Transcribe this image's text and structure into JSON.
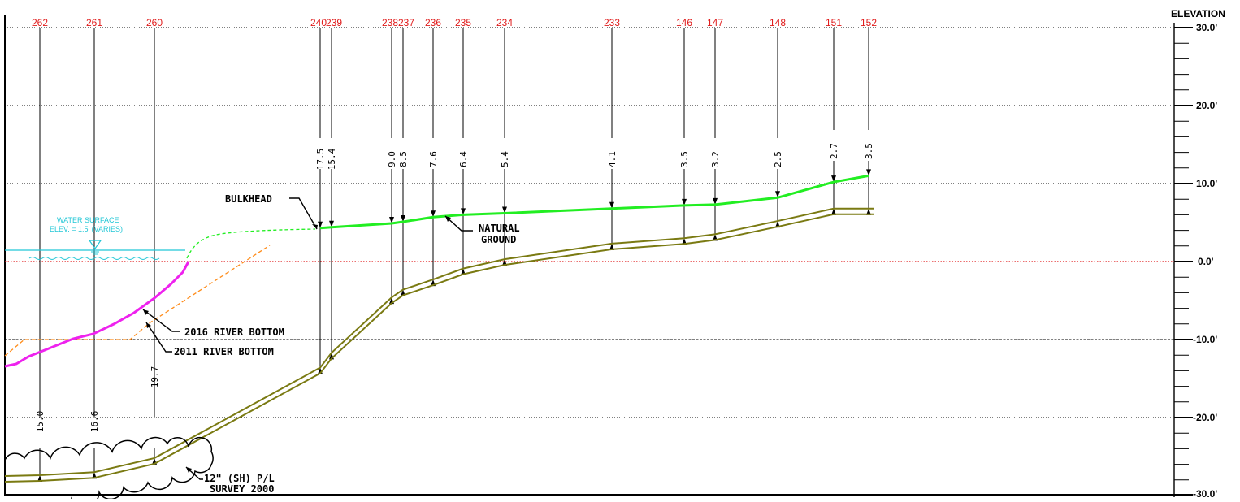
{
  "axis": {
    "title": "ELEVATION",
    "ticks": [
      {
        "value": 30,
        "label": "30.0'"
      },
      {
        "value": 20,
        "label": "20.0'"
      },
      {
        "value": 10,
        "label": "10.0'"
      },
      {
        "value": 0,
        "label": "0.0'"
      },
      {
        "value": -10,
        "label": "-10.0'"
      },
      {
        "value": -20,
        "label": "-20.0'"
      },
      {
        "value": -30,
        "label": "-30.0'"
      }
    ]
  },
  "stations": [
    {
      "id": "262",
      "depth": "15.0",
      "ground": -27.4,
      "upper": -27.4
    },
    {
      "id": "261",
      "depth": "16.6",
      "ground": -27.0,
      "upper": -27.0
    },
    {
      "id": "260",
      "depth": "19.7",
      "ground": -25.2,
      "upper": -25.2
    },
    {
      "id": "240",
      "depth": "17.5",
      "ground": 4.3,
      "upper": -13.6
    },
    {
      "id": "239",
      "depth": "15.4",
      "ground": 4.4,
      "upper": -11.7
    },
    {
      "id": "238",
      "depth": "9.0",
      "ground": 4.9,
      "upper": -4.6
    },
    {
      "id": "237",
      "depth": "8.5",
      "ground": 5.1,
      "upper": -3.6
    },
    {
      "id": "236",
      "depth": "7.6",
      "ground": 5.7,
      "upper": -2.3
    },
    {
      "id": "235",
      "depth": "6.4",
      "ground": 6.0,
      "upper": -0.9
    },
    {
      "id": "234",
      "depth": "5.4",
      "ground": 6.2,
      "upper": 0.3
    },
    {
      "id": "233",
      "depth": "4.1",
      "ground": 6.8,
      "upper": 2.3
    },
    {
      "id": "146",
      "depth": "3.5",
      "ground": 7.2,
      "upper": 3.0
    },
    {
      "id": "147",
      "depth": "3.2",
      "ground": 7.3,
      "upper": 3.5
    },
    {
      "id": "148",
      "depth": "2.5",
      "ground": 8.2,
      "upper": 5.2
    },
    {
      "id": "151",
      "depth": "2.7",
      "ground": 10.2,
      "upper": 6.8
    },
    {
      "id": "152",
      "depth": "3.5",
      "ground": 11.0,
      "upper": 6.8
    }
  ],
  "labels": {
    "bulkhead": "BULKHEAD",
    "natural_ground_1": "NATURAL",
    "natural_ground_2": "GROUND",
    "river_2016": "2016 RIVER BOTTOM",
    "river_2011": "2011 RIVER BOTTOM",
    "water_1": "WATER SURFACE",
    "water_2": "ELEV. = 1.5' (VARIES)",
    "pipe_1": "12\" (SH) P/L",
    "pipe_2": "SURVEY 2000"
  },
  "colors": {
    "ground": "#22ee22",
    "pipeline": "#7a7a12",
    "river_2016": "#ee22ee",
    "river_2011": "#ff8c1a",
    "station": "#e01b1b",
    "water": "#22c7d6",
    "datum": "#e01b1b"
  }
}
